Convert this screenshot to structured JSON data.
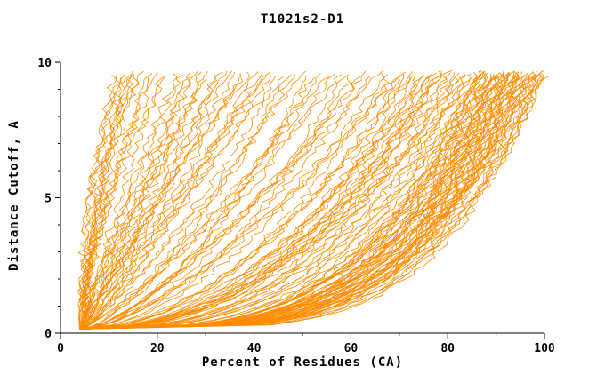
{
  "chart": {
    "title": "T1021s2-D1",
    "xlabel": "Percent of Residues (CA)",
    "ylabel": "Distance Cutoff, A"
  },
  "chart_data": {
    "type": "line",
    "title": "T1021s2-D1",
    "xlabel": "Percent of Residues (CA)",
    "ylabel": "Distance Cutoff, A",
    "xlim": [
      0,
      100
    ],
    "ylim": [
      0,
      10
    ],
    "x_ticks": [
      0,
      20,
      40,
      60,
      80,
      100
    ],
    "y_ticks": [
      0,
      5,
      10
    ],
    "x_minor_step": 10,
    "y_minor_step": 1,
    "grid": false,
    "legend": "none",
    "line_color": "#FF8C00",
    "background": "#ffffff",
    "curve_model": "each curve is [x_start_percent, x_at_top_percent, shape_q]; x(y) = x0 + (xtop - x0) * ((y - y_start)/(y_end - y_start))^q, monotone cumulative curves from bottom-left to top",
    "y_start": 0.15,
    "y_end": 9.7,
    "curves": [
      [
        4,
        11,
        1.8
      ],
      [
        4.5,
        12,
        2.0
      ],
      [
        5,
        13,
        1.6
      ],
      [
        4,
        14,
        1.5
      ],
      [
        5,
        15,
        1.9
      ],
      [
        4.5,
        16,
        1.4
      ],
      [
        5,
        17,
        2.1
      ],
      [
        4,
        18,
        1.3
      ],
      [
        5.5,
        19,
        1.7
      ],
      [
        4,
        20,
        1.5
      ],
      [
        5,
        21,
        1.2
      ],
      [
        4.5,
        22,
        1.6
      ],
      [
        4,
        12.5,
        2.2
      ],
      [
        5,
        13.5,
        1.4
      ],
      [
        4.5,
        15.5,
        1.8
      ],
      [
        4,
        24,
        1.1
      ],
      [
        5,
        26,
        0.9
      ],
      [
        4.5,
        28,
        1.2
      ],
      [
        4,
        30,
        1.0
      ],
      [
        5,
        32,
        0.85
      ],
      [
        4.5,
        34,
        1.3
      ],
      [
        4,
        36,
        0.95
      ],
      [
        5,
        38,
        1.1
      ],
      [
        4.5,
        40,
        0.8
      ],
      [
        4,
        42,
        1.05
      ],
      [
        5,
        44,
        0.9
      ],
      [
        4.5,
        25,
        1.15
      ],
      [
        4,
        27,
        1.0
      ],
      [
        5,
        29,
        0.9
      ],
      [
        4.5,
        31,
        1.2
      ],
      [
        4,
        33,
        0.95
      ],
      [
        5,
        35,
        1.05
      ],
      [
        4.5,
        37,
        0.85
      ],
      [
        4,
        39,
        1.1
      ],
      [
        5,
        41,
        0.9
      ],
      [
        4.5,
        43,
        1.0
      ],
      [
        4,
        45,
        0.95
      ],
      [
        4,
        46,
        0.8
      ],
      [
        5,
        48,
        0.7
      ],
      [
        4.5,
        50,
        0.85
      ],
      [
        4,
        52,
        0.6
      ],
      [
        5,
        54,
        0.75
      ],
      [
        4.5,
        56,
        0.65
      ],
      [
        4,
        58,
        0.8
      ],
      [
        5,
        60,
        0.55
      ],
      [
        4.5,
        62,
        0.7
      ],
      [
        4,
        64,
        0.6
      ],
      [
        5,
        66,
        0.75
      ],
      [
        4.5,
        68,
        0.5
      ],
      [
        4,
        70,
        0.65
      ],
      [
        5,
        47,
        0.72
      ],
      [
        4.5,
        51,
        0.58
      ],
      [
        4,
        55,
        0.8
      ],
      [
        5,
        59,
        0.62
      ],
      [
        4.5,
        63,
        0.7
      ],
      [
        4,
        67,
        0.55
      ],
      [
        5,
        69,
        0.68
      ],
      [
        4,
        71,
        0.5
      ],
      [
        5,
        72,
        0.45
      ],
      [
        4.5,
        73,
        0.55
      ],
      [
        4,
        74,
        0.4
      ],
      [
        5,
        75,
        0.5
      ],
      [
        4.5,
        76,
        0.42
      ],
      [
        4,
        77,
        0.52
      ],
      [
        5,
        78,
        0.38
      ],
      [
        4.5,
        79,
        0.48
      ],
      [
        4,
        80,
        0.44
      ],
      [
        5,
        81,
        0.5
      ],
      [
        4.5,
        82,
        0.4
      ],
      [
        4,
        83,
        0.46
      ],
      [
        5,
        84,
        0.36
      ],
      [
        4.5,
        85,
        0.5
      ],
      [
        4,
        72.5,
        0.42
      ],
      [
        5,
        74.5,
        0.48
      ],
      [
        4.5,
        76.5,
        0.4
      ],
      [
        4,
        78.5,
        0.45
      ],
      [
        5,
        80.5,
        0.38
      ],
      [
        4.5,
        82.5,
        0.44
      ],
      [
        4,
        84.5,
        0.4
      ],
      [
        5,
        71.5,
        0.52
      ],
      [
        4.5,
        77.5,
        0.42
      ],
      [
        4,
        83.5,
        0.38
      ],
      [
        4,
        86,
        0.35
      ],
      [
        5,
        87,
        0.3
      ],
      [
        4.5,
        88,
        0.33
      ],
      [
        4,
        89,
        0.28
      ],
      [
        5,
        90,
        0.32
      ],
      [
        4.5,
        91,
        0.27
      ],
      [
        4,
        92,
        0.3
      ],
      [
        5,
        93,
        0.26
      ],
      [
        4.5,
        94,
        0.29
      ],
      [
        4,
        95,
        0.25
      ],
      [
        5,
        96,
        0.28
      ],
      [
        4.5,
        97,
        0.24
      ],
      [
        4,
        98,
        0.27
      ],
      [
        5,
        99,
        0.23
      ],
      [
        4.5,
        100,
        0.26
      ],
      [
        4,
        86.5,
        0.3
      ],
      [
        5,
        87.5,
        0.28
      ],
      [
        4.5,
        88.5,
        0.31
      ],
      [
        4,
        89.5,
        0.27
      ],
      [
        5,
        90.5,
        0.3
      ],
      [
        4.5,
        91.5,
        0.25
      ],
      [
        4,
        92.5,
        0.29
      ],
      [
        5,
        93.5,
        0.24
      ],
      [
        4.5,
        94.5,
        0.28
      ],
      [
        4,
        95.5,
        0.23
      ],
      [
        5,
        96.5,
        0.27
      ],
      [
        4.5,
        97.5,
        0.25
      ],
      [
        4,
        98.5,
        0.26
      ],
      [
        5,
        99.5,
        0.22
      ],
      [
        4.5,
        100,
        0.3
      ],
      [
        4,
        90,
        0.26
      ],
      [
        5,
        92,
        0.24
      ],
      [
        4.5,
        94,
        0.25
      ],
      [
        4,
        96,
        0.24
      ],
      [
        5,
        98,
        0.22
      ],
      [
        4.5,
        95,
        0.3
      ],
      [
        4,
        93,
        0.27
      ],
      [
        5,
        91,
        0.29
      ],
      [
        4.5,
        89,
        0.31
      ],
      [
        4,
        87,
        0.33
      ],
      [
        5,
        97,
        0.26
      ],
      [
        4.5,
        99,
        0.24
      ],
      [
        4,
        94,
        0.22
      ],
      [
        5,
        96,
        0.3
      ],
      [
        4.5,
        98,
        0.28
      ],
      [
        4,
        100,
        0.24
      ],
      [
        5,
        95,
        0.26
      ],
      [
        4.5,
        93,
        0.3
      ],
      [
        4,
        91,
        0.32
      ],
      [
        5,
        89,
        0.34
      ],
      [
        4.5,
        87,
        0.36
      ],
      [
        4,
        88,
        0.3
      ],
      [
        5,
        90,
        0.28
      ],
      [
        4.5,
        92,
        0.26
      ],
      [
        4,
        94,
        0.31
      ],
      [
        5,
        86,
        0.38
      ]
    ]
  }
}
